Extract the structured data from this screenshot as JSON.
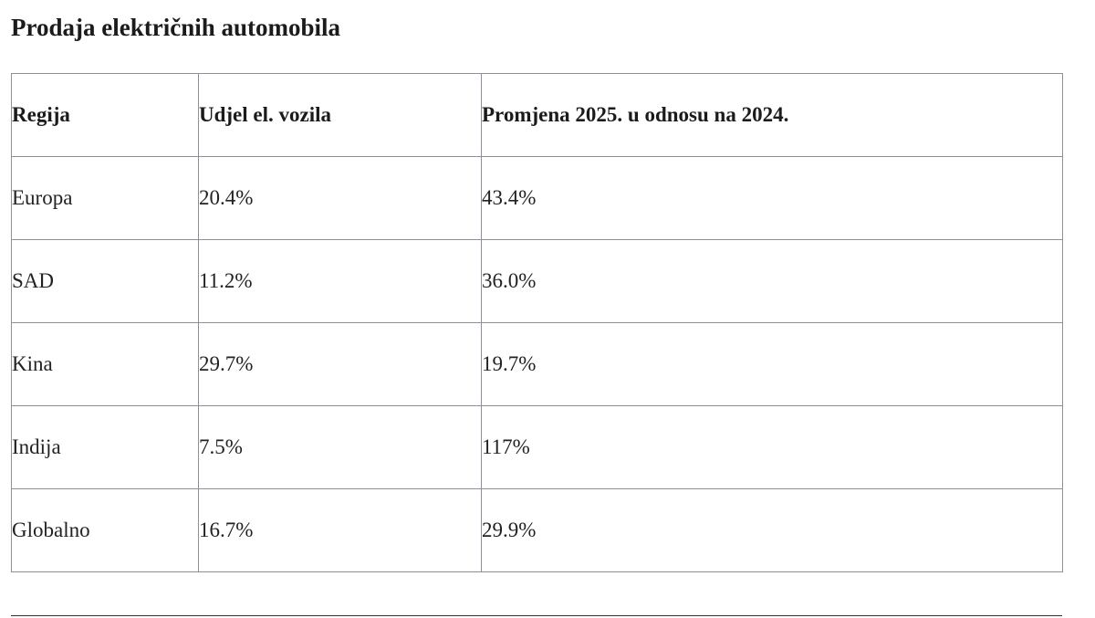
{
  "title": "Prodaja električnih automobila",
  "table": {
    "headers": [
      "Regija",
      "Udjel el. vozila",
      "Promjena 2025. u odnosu na 2024."
    ],
    "rows": [
      [
        "Europa",
        "20.4%",
        "43.4%"
      ],
      [
        "SAD",
        "11.2%",
        "36.0%"
      ],
      [
        "Kina",
        "29.7%",
        "19.7%"
      ],
      [
        "Indija",
        "7.5%",
        "117%"
      ],
      [
        "Globalno",
        "16.7%",
        "29.9%"
      ]
    ]
  }
}
